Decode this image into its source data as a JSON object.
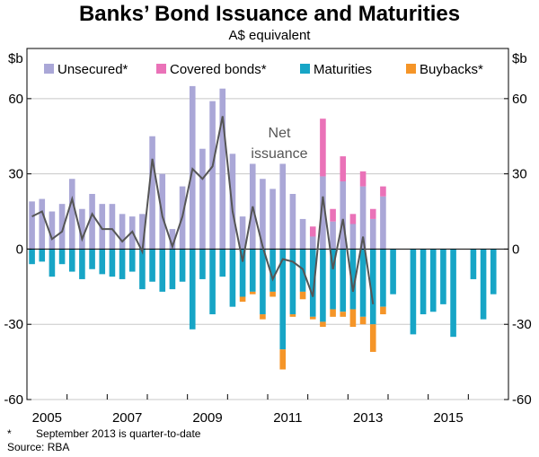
{
  "chart_data": {
    "type": "bar",
    "title": "Banks’ Bond Issuance and Maturities",
    "subtitle": "A$ equivalent",
    "ylabel_left": "$b",
    "ylabel_right": "$b",
    "ylim": [
      -60,
      80
    ],
    "yticks": [
      -60,
      -30,
      0,
      30,
      60
    ],
    "xtick_labels": [
      "2005",
      "2007",
      "2009",
      "2011",
      "2013",
      "2015"
    ],
    "xtick_label_quarter_index": [
      2,
      10,
      18,
      26,
      34,
      42
    ],
    "quarters_first": "Q1 2004",
    "quarters_count": 48,
    "legend": {
      "unsecured": "Unsecured*",
      "covered": "Covered bonds*",
      "maturities": "Maturities",
      "buybacks": "Buybacks*"
    },
    "colors": {
      "unsecured": "#aaa7d7",
      "covered": "#ea72b8",
      "maturities": "#17a5c6",
      "buybacks": "#f59528",
      "net": "#555555"
    },
    "series": [
      {
        "name": "Unsecured*",
        "values": [
          19,
          20,
          15,
          18,
          28,
          16,
          22,
          18,
          18,
          14,
          13,
          14,
          45,
          30,
          8,
          25,
          65,
          40,
          59,
          64,
          38,
          13,
          34,
          28,
          24,
          34,
          22,
          12,
          5,
          29,
          11,
          27,
          10,
          25,
          12,
          21,
          null,
          null,
          null,
          null,
          null,
          null,
          null,
          null,
          null,
          null,
          null,
          null
        ]
      },
      {
        "name": "Covered bonds*",
        "values": [
          0,
          0,
          0,
          0,
          0,
          0,
          0,
          0,
          0,
          0,
          0,
          0,
          0,
          0,
          0,
          0,
          0,
          0,
          0,
          0,
          0,
          0,
          0,
          0,
          0,
          0,
          0,
          0,
          4,
          23,
          5,
          10,
          4,
          6,
          4,
          4,
          null,
          null,
          null,
          null,
          null,
          null,
          null,
          null,
          null,
          null,
          null,
          null
        ]
      },
      {
        "name": "Maturities",
        "values": [
          -6,
          -5,
          -11,
          -6,
          -9,
          -12,
          -8,
          -10,
          -11,
          -12,
          -9,
          -16,
          -13,
          -17,
          -16,
          -13,
          -32,
          -12,
          -26,
          -11,
          -23,
          -19,
          -17,
          -26,
          -17,
          -40,
          -26,
          -17,
          -27,
          -29,
          -24,
          -25,
          -24,
          -27,
          -30,
          -23,
          -18,
          null,
          -34,
          -26,
          -25,
          -22,
          -35,
          null,
          -12,
          -28,
          -18,
          null
        ]
      },
      {
        "name": "Buybacks*",
        "values": [
          0,
          0,
          0,
          0,
          0,
          0,
          0,
          0,
          0,
          0,
          0,
          0,
          0,
          0,
          0,
          0,
          0,
          0,
          0,
          0,
          0,
          -2,
          -1,
          -2,
          -2,
          -8,
          -1,
          -3,
          -1,
          -2,
          -3,
          -2,
          -7,
          -3,
          -11,
          -3,
          null,
          null,
          null,
          null,
          null,
          null,
          null,
          null,
          null,
          null,
          null,
          null
        ]
      },
      {
        "name": "Net issuance",
        "values": [
          13,
          15,
          4,
          7,
          20,
          4,
          14,
          8,
          8,
          3,
          7,
          -1,
          36,
          13,
          1,
          13,
          32,
          28,
          33,
          53,
          15,
          -5,
          17,
          1,
          -12,
          -4,
          -5,
          -8,
          -19,
          21,
          -8,
          12,
          -17,
          5,
          -22,
          null,
          null,
          null,
          null,
          null,
          null,
          null,
          null,
          null,
          null,
          null,
          null,
          null
        ]
      }
    ],
    "annotation": {
      "line1": "Net",
      "line2": "issuance"
    }
  },
  "footnote": {
    "marker": "*",
    "text": "September 2013 is quarter-to-date"
  },
  "source": "Source: RBA"
}
